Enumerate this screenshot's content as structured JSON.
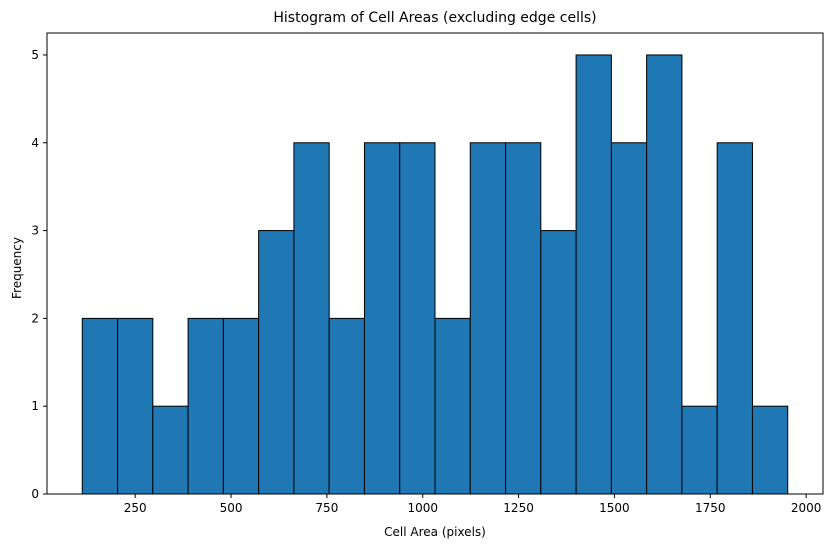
{
  "chart_data": {
    "type": "bar",
    "title": "Histogram of Cell Areas (excluding edge cells)",
    "xlabel": "Cell Area (pixels)",
    "ylabel": "Frequency",
    "bin_edges": [
      112,
      204,
      296,
      388,
      480,
      572,
      664,
      756,
      848,
      940,
      1032,
      1124,
      1216,
      1308,
      1400,
      1492,
      1584,
      1676,
      1768,
      1860,
      1952
    ],
    "values": [
      2,
      2,
      1,
      2,
      2,
      3,
      4,
      2,
      4,
      4,
      2,
      4,
      4,
      3,
      5,
      4,
      5,
      1,
      4,
      1
    ],
    "xlim": [
      20,
      2044
    ],
    "ylim": [
      0,
      5.25
    ],
    "xticks": [
      250,
      500,
      750,
      1000,
      1250,
      1500,
      1750,
      2000
    ],
    "yticks": [
      0,
      1,
      2,
      3,
      4,
      5
    ],
    "bar_color": "#1f77b4",
    "edge_color": "#000000",
    "grid": false
  }
}
